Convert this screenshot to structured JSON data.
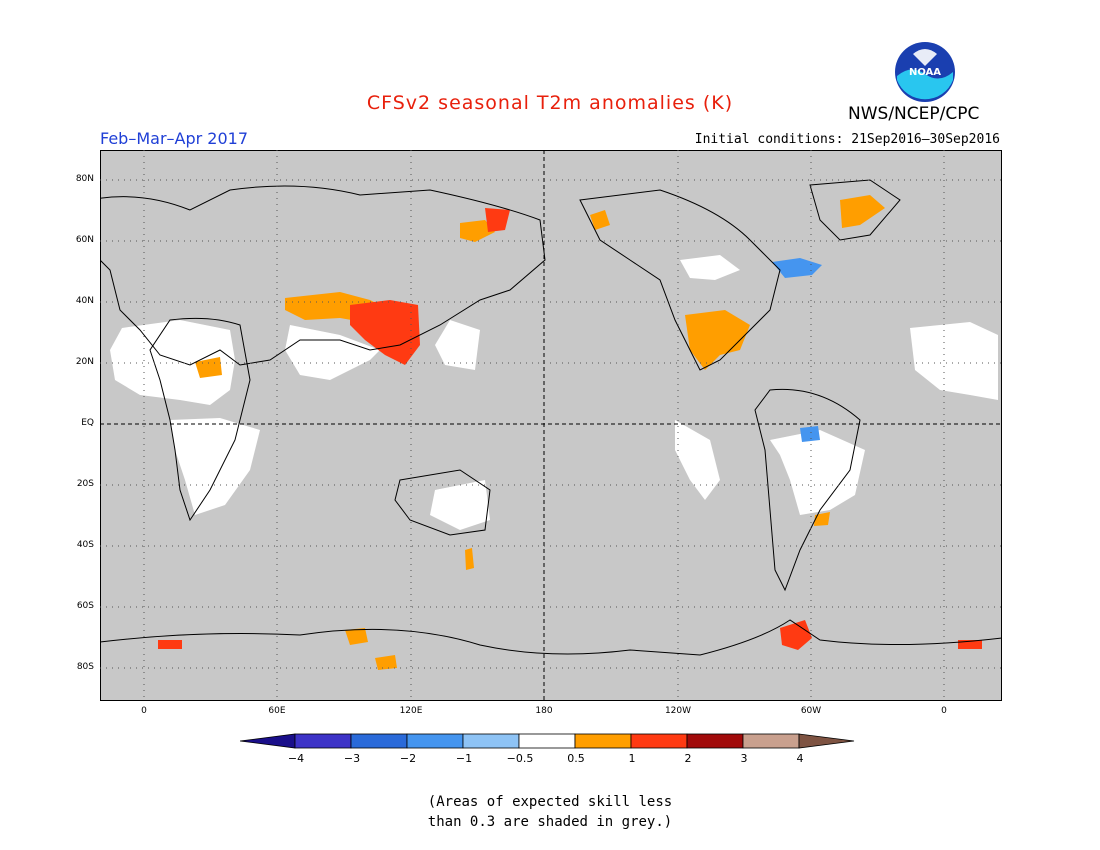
{
  "header": {
    "title": "CFSv2 seasonal T2m anomalies (K)",
    "agency": "NWS/NCEP/CPC",
    "logo_text": "NOAA",
    "period": "Feb–Mar–Apr 2017",
    "initial_conditions": "Initial conditions: 21Sep2016–30Sep2016"
  },
  "map": {
    "lat_labels": [
      "80N",
      "60N",
      "40N",
      "20N",
      "EQ",
      "20S",
      "40S",
      "60S",
      "80S"
    ],
    "lon_labels": [
      "0",
      "60E",
      "120E",
      "180",
      "120W",
      "60W",
      "0"
    ],
    "background_color": "#c8c8c8",
    "skill_mask_color": "#c8c8c8"
  },
  "colorbar": {
    "labels": [
      "−4",
      "−3",
      "−2",
      "−1",
      "−0.5",
      "0.5",
      "1",
      "2",
      "3",
      "4"
    ],
    "colors": [
      "#1a0f8a",
      "#3d33c7",
      "#2a6ad9",
      "#4595ef",
      "#8ec3f5",
      "#ffffff",
      "#ff9e00",
      "#ff3a12",
      "#a10a0a",
      "#c9a08e",
      "#7e5342"
    ]
  },
  "note": {
    "line1": "(Areas of expected skill less",
    "line2": "than 0.3 are shaded in grey.)"
  }
}
